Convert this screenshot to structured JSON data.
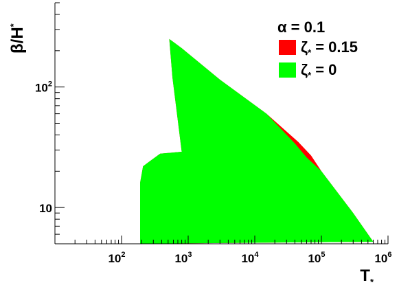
{
  "chart_data": {
    "type": "area",
    "title": "",
    "xlabel": "T",
    "xlabel_sub": "*",
    "ylabel": "β/H",
    "ylabel_sub": "*",
    "xscale": "log",
    "yscale": "log",
    "xlim": [
      10,
      1000000
    ],
    "ylim": [
      5,
      500
    ],
    "grid": false,
    "x_tick_labels": [
      {
        "base": "10",
        "exp": "2"
      },
      {
        "base": "10",
        "exp": "3"
      },
      {
        "base": "10",
        "exp": "4"
      },
      {
        "base": "10",
        "exp": "5"
      },
      {
        "base": "10",
        "exp": "6"
      }
    ],
    "y_tick_labels": [
      {
        "base": "10",
        "exp": ""
      },
      {
        "base": "10",
        "exp": "2"
      }
    ],
    "legend_title": "α = 0.1",
    "legend_placement": "top-right",
    "series": [
      {
        "name": "ζ* = 0.15",
        "label_symbol": "ζ",
        "label_sub": "*",
        "label_value": "= 0.15",
        "color": "#ff0000",
        "region_boundary": [
          [
            190,
            5
          ],
          [
            190,
            16
          ],
          [
            210,
            22
          ],
          [
            260,
            24
          ],
          [
            380,
            28
          ],
          [
            800,
            29
          ],
          [
            580,
            120
          ],
          [
            520,
            250
          ],
          [
            800,
            210
          ],
          [
            3000,
            115
          ],
          [
            15000,
            60
          ],
          [
            45000,
            35
          ],
          [
            70000,
            27
          ],
          [
            100000,
            20
          ],
          [
            300000,
            9
          ],
          [
            600000,
            5.2
          ],
          [
            190,
            5
          ]
        ]
      },
      {
        "name": "ζ* = 0",
        "label_symbol": "ζ",
        "label_sub": "*",
        "label_value": "= 0",
        "color": "#00ff00",
        "region_boundary": [
          [
            190,
            5
          ],
          [
            190,
            16
          ],
          [
            210,
            22
          ],
          [
            260,
            24
          ],
          [
            380,
            28
          ],
          [
            800,
            29
          ],
          [
            580,
            120
          ],
          [
            520,
            250
          ],
          [
            800,
            210
          ],
          [
            3000,
            115
          ],
          [
            15000,
            60
          ],
          [
            40000,
            34
          ],
          [
            60000,
            26
          ],
          [
            100000,
            20
          ],
          [
            300000,
            9
          ],
          [
            600000,
            5.2
          ],
          [
            190,
            5
          ]
        ]
      }
    ]
  }
}
